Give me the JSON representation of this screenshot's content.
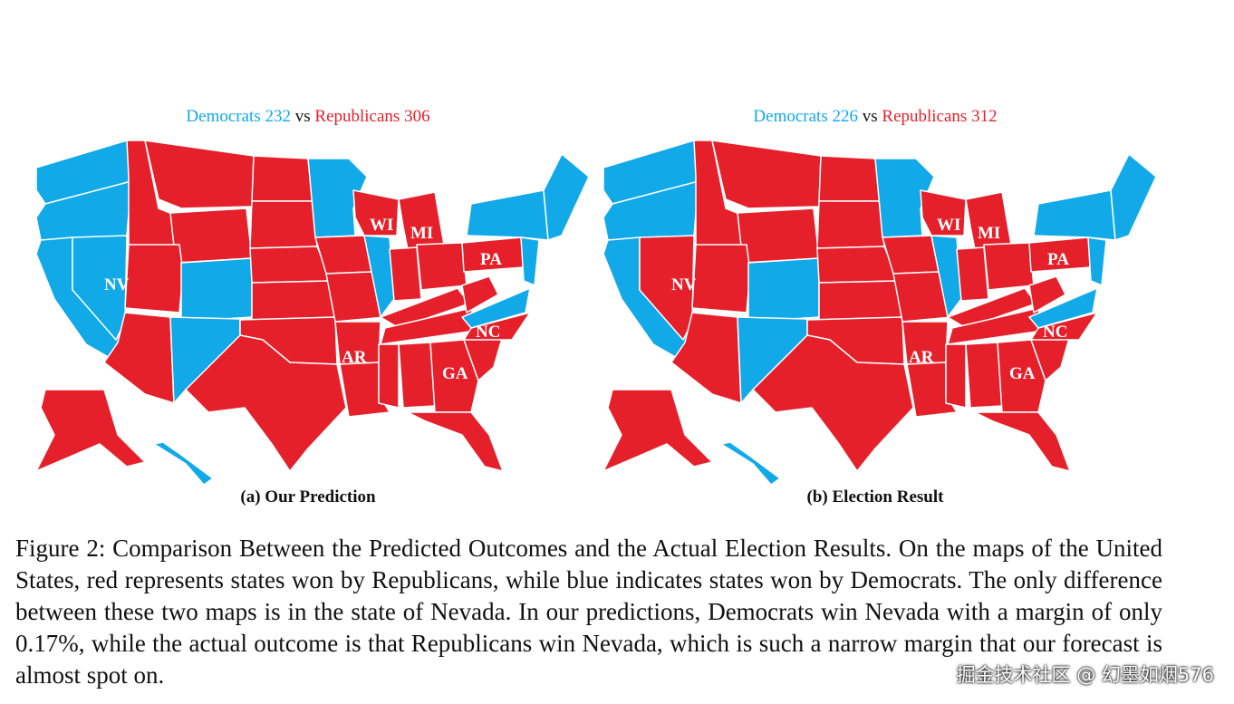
{
  "colors": {
    "democrat": "#11a9e8",
    "republican": "#e5202a",
    "border": "#ffffff"
  },
  "panels": [
    {
      "id": "a",
      "dem_label": "Democrats",
      "dem_votes": "232",
      "vs": "vs",
      "rep_label": "Republicans",
      "rep_votes": "306",
      "subcaption": "(a) Our Prediction",
      "state_labels": [
        "NV",
        "WI",
        "MI",
        "PA",
        "NC",
        "AR",
        "GA"
      ],
      "nevada_winner": "democrat"
    },
    {
      "id": "b",
      "dem_label": "Democrats",
      "dem_votes": "226",
      "vs": "vs",
      "rep_label": "Republicans",
      "rep_votes": "312",
      "subcaption": "(b) Election Result",
      "state_labels": [
        "NV",
        "WI",
        "MI",
        "PA",
        "NC",
        "AR",
        "GA"
      ],
      "nevada_winner": "republican"
    }
  ],
  "caption": "Figure 2:   Comparison Between the Predicted Outcomes and the Actual Election Results. On the maps of the United States, red represents states won by Republicans, while blue indicates states won by Democrats. The only difference between these two maps is in the state of Nevada. In our predictions, Democrats win Nevada with a margin of only 0.17%, while the actual outcome is that Republicans win Nevada, which is such a narrow margin that our forecast is almost spot on.",
  "watermark": "掘金技术社区 @ 幻墨如烟576"
}
